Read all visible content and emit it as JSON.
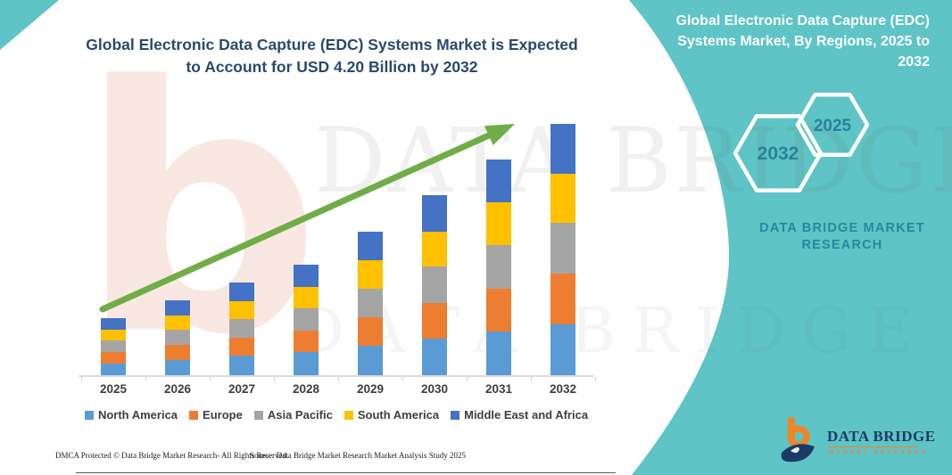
{
  "colors": {
    "teal": "#5ec4c5",
    "title_text": "#2b4a6b",
    "panel_text": "#ffffff",
    "brand_teal_text": "#2a86a0",
    "arrow_green": "#70ad47",
    "axis_gray": "#dadada",
    "label_gray": "#3f3f3f",
    "logo_navy": "#1d3a66",
    "logo_orange": "#f08426"
  },
  "title": {
    "line1": "Global Electronic Data Capture (EDC) Systems Market is Expected",
    "line2": "to Account for USD 4.20 Billion by 2032"
  },
  "right_panel": {
    "heading_line1": "Global Electronic Data Capture (EDC)",
    "heading_line2": "Systems Market, By Regions, 2025 to",
    "heading_line3": "2032",
    "hexagon_back_label": "2032",
    "hexagon_front_label": "2025",
    "brand_line1": "DATA BRIDGE MARKET",
    "brand_line2": "RESEARCH"
  },
  "watermark": {
    "row1": "DATA BRIDGE",
    "row2": "DATA BRIDGE",
    "letter": "b"
  },
  "chart_data": {
    "type": "bar",
    "subtype": "stacked-vertical",
    "unit": "USD Billion",
    "title": "Global Electronic Data Capture (EDC) Systems Market, By Regions, 2025 to 2032",
    "xlabel": "",
    "ylabel": "",
    "grid": false,
    "legend_position": "bottom",
    "ylim": [
      0,
      4.5
    ],
    "categories": [
      "2025",
      "2026",
      "2027",
      "2028",
      "2029",
      "2030",
      "2031",
      "2032"
    ],
    "series": [
      {
        "name": "North America",
        "color": "#5b9bd5",
        "values": [
          0.2,
          0.26,
          0.32,
          0.38,
          0.49,
          0.61,
          0.73,
          0.85
        ]
      },
      {
        "name": "Europe",
        "color": "#ed7d31",
        "values": [
          0.18,
          0.24,
          0.3,
          0.36,
          0.47,
          0.59,
          0.71,
          0.84
        ]
      },
      {
        "name": "Asia Pacific",
        "color": "#a5a5a5",
        "values": [
          0.2,
          0.26,
          0.32,
          0.38,
          0.49,
          0.61,
          0.73,
          0.85
        ]
      },
      {
        "name": "South America",
        "color": "#ffc000",
        "values": [
          0.18,
          0.24,
          0.3,
          0.36,
          0.47,
          0.59,
          0.71,
          0.82
        ]
      },
      {
        "name": "Middle East and Africa",
        "color": "#4472c4",
        "values": [
          0.19,
          0.25,
          0.31,
          0.37,
          0.48,
          0.6,
          0.72,
          0.84
        ]
      }
    ],
    "totals": [
      0.95,
      1.25,
      1.55,
      1.85,
      2.4,
      3.0,
      3.6,
      4.2
    ],
    "annotations": {
      "headline_value": "USD 4.20 Billion by 2032",
      "trend_arrow": "increasing"
    }
  },
  "footer": {
    "left": "DMCA Protected © Data Bridge Market Research-  All Rights Reserved.",
    "right": "Source: Data Bridge Market Research  Market Analysis Study 2025"
  },
  "logo": {
    "name": "DATA BRIDGE",
    "subtitle": "MARKET RESEARCH"
  }
}
